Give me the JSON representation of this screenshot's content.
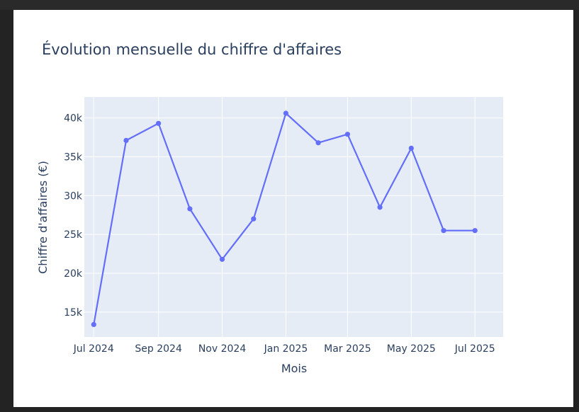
{
  "chart_data": {
    "type": "line",
    "title": "Évolution mensuelle du chiffre d'affaires",
    "xlabel": "Mois",
    "ylabel": "Chiffre d'affaires (€)",
    "x": [
      "2024-07",
      "2024-08",
      "2024-09",
      "2024-10",
      "2024-11",
      "2024-12",
      "2025-01",
      "2025-02",
      "2025-03",
      "2025-04",
      "2025-05",
      "2025-06",
      "2025-07"
    ],
    "series": [
      {
        "values": [
          13400,
          37100,
          39300,
          28300,
          21800,
          27000,
          40600,
          36800,
          37900,
          28500,
          36100,
          25500,
          25500
        ]
      }
    ],
    "xlim": [
      "2024-06-22",
      "2025-07-28"
    ],
    "ylim": [
      11800,
      42700
    ],
    "x_ticks": [
      {
        "date": "2024-07-01",
        "label": "Jul 2024"
      },
      {
        "date": "2024-09-01",
        "label": "Sep 2024"
      },
      {
        "date": "2024-11-01",
        "label": "Nov 2024"
      },
      {
        "date": "2025-01-01",
        "label": "Jan 2025"
      },
      {
        "date": "2025-03-01",
        "label": "Mar 2025"
      },
      {
        "date": "2025-05-01",
        "label": "May 2025"
      },
      {
        "date": "2025-07-01",
        "label": "Jul 2025"
      }
    ],
    "y_ticks": [
      {
        "value": 15000,
        "label": "15k"
      },
      {
        "value": 20000,
        "label": "20k"
      },
      {
        "value": 25000,
        "label": "25k"
      },
      {
        "value": 30000,
        "label": "30k"
      },
      {
        "value": 35000,
        "label": "35k"
      },
      {
        "value": 40000,
        "label": "40k"
      }
    ],
    "grid": true,
    "colors": {
      "line": "#636efa",
      "plot_bg": "#e5ecf6",
      "grid": "#ffffff",
      "text": "#2a3f5f"
    }
  }
}
